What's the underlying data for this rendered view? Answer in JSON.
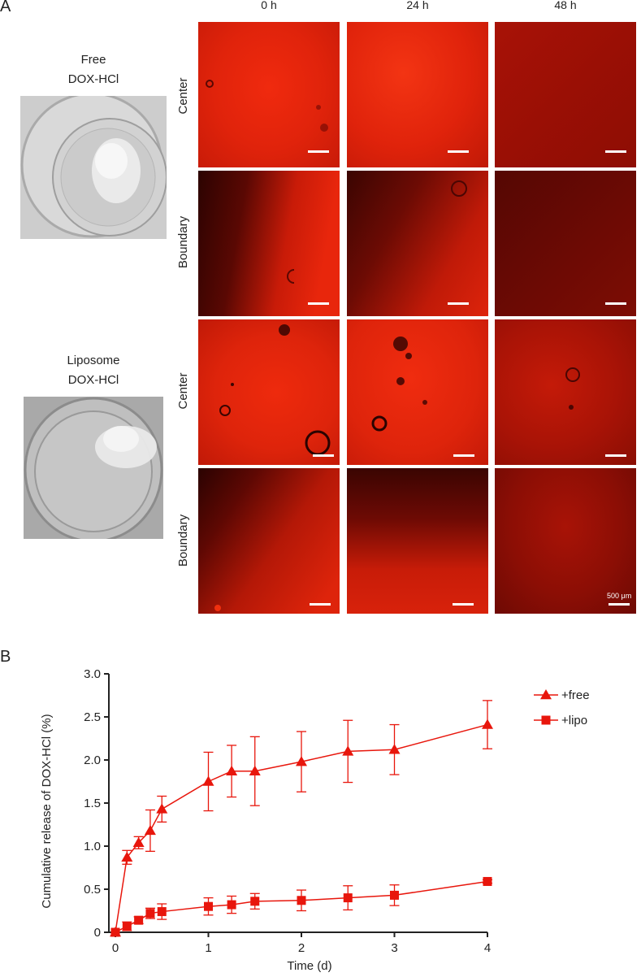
{
  "panel_a": {
    "letter": "A",
    "time_headers": [
      "0 h",
      "24 h",
      "48 h"
    ],
    "groups": [
      {
        "name_line1": "Free",
        "name_line2": "DOX-HCl",
        "rows": [
          "Center",
          "Boundary"
        ]
      },
      {
        "name_line1": "Liposome",
        "name_line2": "DOX-HCl",
        "rows": [
          "Center",
          "Boundary"
        ]
      }
    ],
    "scale_label": "500 μm",
    "colors": {
      "bright": "#e8260c",
      "mid": "#c41a08",
      "dim": "#7d0d04",
      "dark": "#3a0502"
    }
  },
  "panel_b": {
    "letter": "B",
    "chart_data": {
      "type": "line",
      "xlabel": "Time (d)",
      "ylabel": "Cumulative release of DOX-HCl (%)",
      "xlim": [
        0,
        4
      ],
      "ylim": [
        0,
        3.0
      ],
      "xticks": [
        "0",
        "1",
        "2",
        "3",
        "4"
      ],
      "yticks": [
        "0",
        "0.5",
        "1.0",
        "1.5",
        "2.0",
        "2.5",
        "3.0"
      ],
      "legend_position": "top-right",
      "x": [
        0,
        0.125,
        0.25,
        0.375,
        0.5,
        1,
        1.25,
        1.5,
        2,
        2.5,
        3,
        4
      ],
      "series": [
        {
          "name": "+free",
          "marker": "triangle",
          "color": "#e8160c",
          "values": [
            0,
            0.87,
            1.04,
            1.18,
            1.43,
            1.75,
            1.87,
            1.87,
            1.98,
            2.1,
            2.12,
            2.41
          ],
          "errors": [
            0,
            0.08,
            0.07,
            0.24,
            0.15,
            0.34,
            0.3,
            0.4,
            0.35,
            0.36,
            0.29,
            0.28
          ]
        },
        {
          "name": "+lipo",
          "marker": "square",
          "color": "#e8160c",
          "values": [
            0,
            0.07,
            0.14,
            0.22,
            0.24,
            0.3,
            0.32,
            0.36,
            0.37,
            0.4,
            0.43,
            0.59
          ],
          "errors": [
            0,
            0.05,
            0.04,
            0.06,
            0.09,
            0.1,
            0.1,
            0.09,
            0.12,
            0.14,
            0.12,
            0.02
          ]
        }
      ]
    }
  }
}
